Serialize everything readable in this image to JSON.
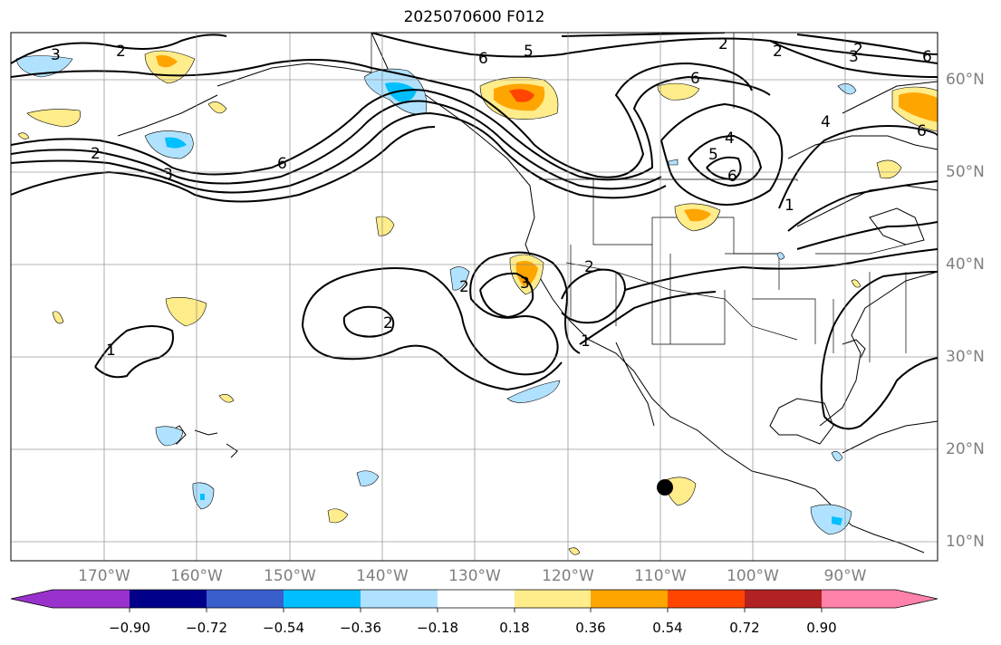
{
  "title": "2025070600 F012",
  "lat_labels": [
    "60°N",
    "50°N",
    "40°N",
    "30°N",
    "20°N",
    "10°N"
  ],
  "lon_labels": [
    "170°W",
    "160°W",
    "150°W",
    "140°W",
    "130°W",
    "120°W",
    "110°W",
    "100°W",
    "90°W"
  ],
  "colorbar": {
    "ticks": [
      "−0.90",
      "−0.72",
      "−0.54",
      "−0.36",
      "−0.18",
      "0.18",
      "0.36",
      "0.54",
      "0.72",
      "0.90"
    ],
    "colors": [
      "#9932cc",
      "#00008b",
      "#3a5fcd",
      "#00bfff",
      "#b0e2ff",
      "#ffffff",
      "#ffec8b",
      "#ffa500",
      "#ff4500",
      "#b22222",
      "#ff82ab"
    ]
  },
  "contour_labels": [
    "3",
    "2",
    "2",
    "3",
    "6",
    "5",
    "6",
    "2",
    "2",
    "3",
    "6",
    "6",
    "5",
    "4",
    "6",
    "4",
    "6",
    "2",
    "2",
    "2",
    "3",
    "2",
    "1",
    "1",
    "1"
  ],
  "marker": "storm-position-dot"
}
